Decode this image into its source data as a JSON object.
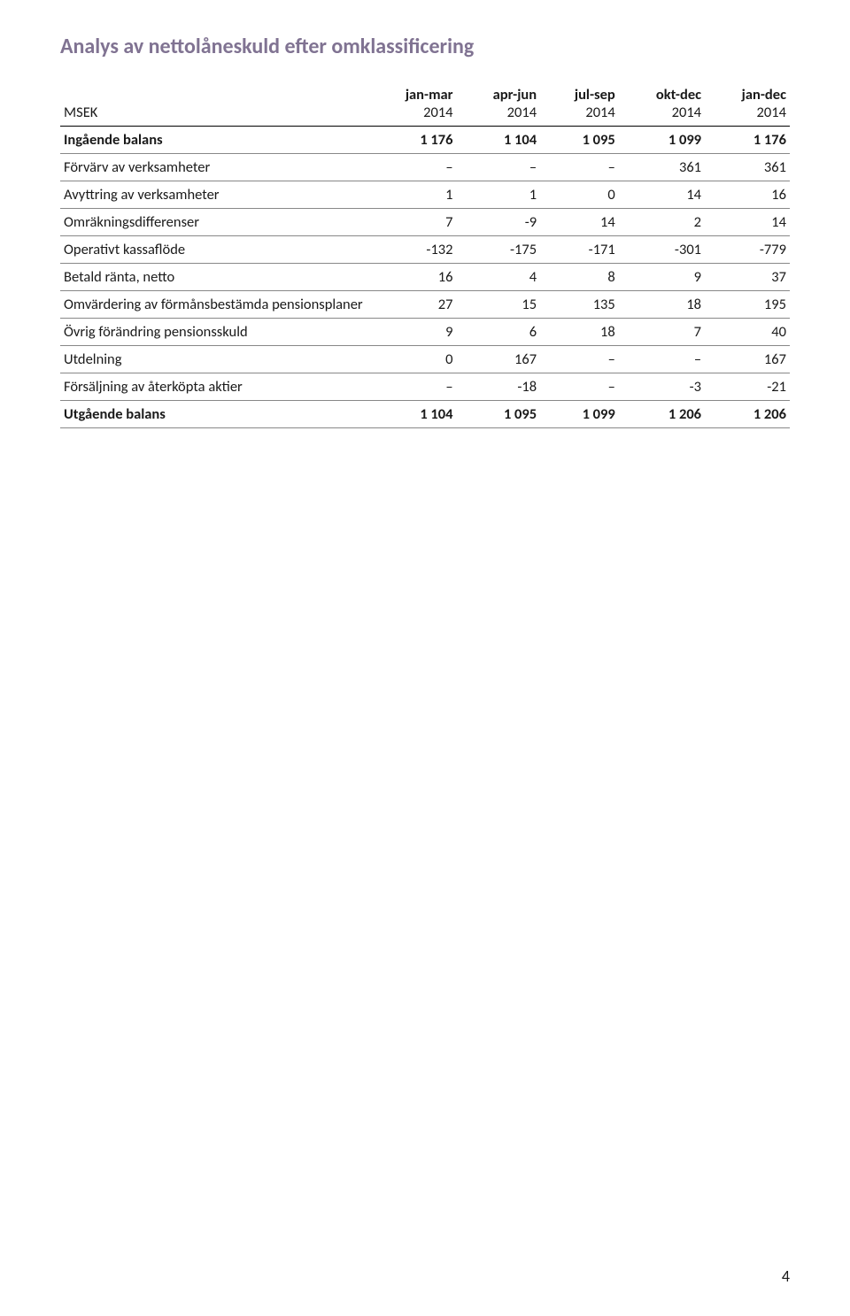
{
  "title": "Analys av nettolåneskuld efter omklassificering",
  "table": {
    "first_header_label": "MSEK",
    "periods": [
      "jan-mar",
      "apr-jun",
      "jul-sep",
      "okt-dec",
      "jan-dec"
    ],
    "years": [
      "2014",
      "2014",
      "2014",
      "2014",
      "2014"
    ],
    "rows": [
      {
        "label": "Ingående balans",
        "cells": [
          "1 176",
          "1 104",
          "1 095",
          "1 099",
          "1 176"
        ],
        "bold": true
      },
      {
        "label": "Förvärv av verksamheter",
        "cells": [
          "–",
          "–",
          "–",
          "361",
          "361"
        ],
        "bold": false
      },
      {
        "label": "Avyttring av verksamheter",
        "cells": [
          "1",
          "1",
          "0",
          "14",
          "16"
        ],
        "bold": false
      },
      {
        "label": "Omräkningsdifferenser",
        "cells": [
          "7",
          "-9",
          "14",
          "2",
          "14"
        ],
        "bold": false
      },
      {
        "label": "Operativt kassaflöde",
        "cells": [
          "-132",
          "-175",
          "-171",
          "-301",
          "-779"
        ],
        "bold": false
      },
      {
        "label": "Betald ränta, netto",
        "cells": [
          "16",
          "4",
          "8",
          "9",
          "37"
        ],
        "bold": false
      },
      {
        "label": "Omvärdering av förmånsbestämda pensionsplaner",
        "cells": [
          "27",
          "15",
          "135",
          "18",
          "195"
        ],
        "bold": false
      },
      {
        "label": "Övrig förändring pensionsskuld",
        "cells": [
          "9",
          "6",
          "18",
          "7",
          "40"
        ],
        "bold": false
      },
      {
        "label": "Utdelning",
        "cells": [
          "0",
          "167",
          "–",
          "–",
          "167"
        ],
        "bold": false
      },
      {
        "label": "Försäljning av återköpta aktier",
        "cells": [
          "–",
          "-18",
          "–",
          "-3",
          "-21"
        ],
        "bold": false
      },
      {
        "label": "Utgående balans",
        "cells": [
          "1 104",
          "1 095",
          "1 099",
          "1 206",
          "1 206"
        ],
        "bold": true
      }
    ]
  },
  "page_number": "4",
  "colors": {
    "title": "#807392",
    "text": "#1a1a1a",
    "border_thick": "#000000",
    "border_thin": "#888888",
    "background": "#ffffff"
  },
  "typography": {
    "title_fontsize": 24,
    "body_fontsize": 16.5,
    "title_weight": 700,
    "bold_weight": 700
  }
}
